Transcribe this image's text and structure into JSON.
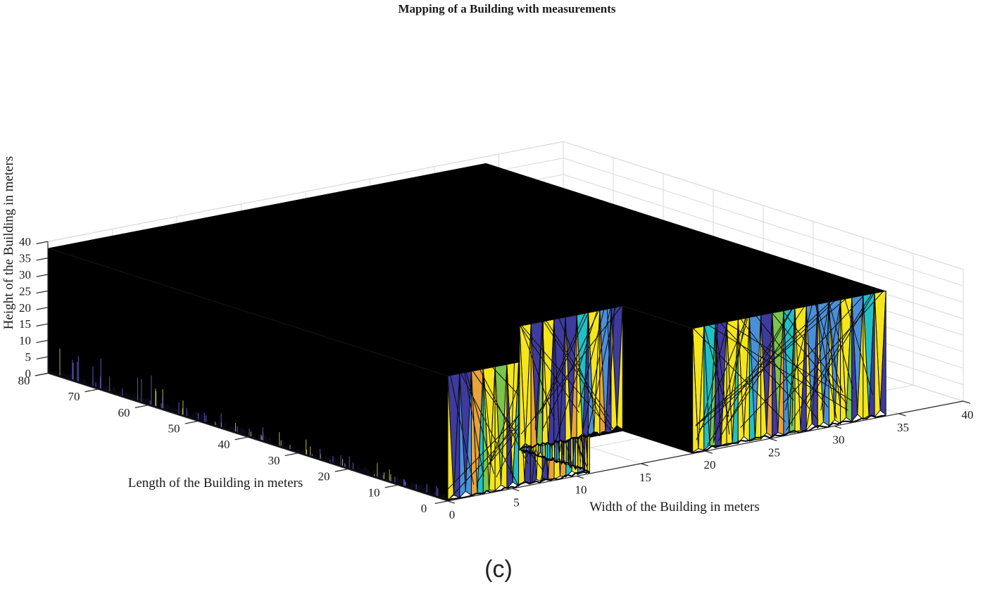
{
  "caption": "(c)",
  "chart_data": {
    "type": "surface3d",
    "title": "Mapping of a Building with measurements",
    "xlabel": "Width of the Building in meters",
    "ylabel": "Length of the Building in meters",
    "zlabel": "Height of the Building in meters",
    "xlim": [
      0,
      40
    ],
    "ylim": [
      0,
      80
    ],
    "zlim": [
      0,
      40
    ],
    "xticks": [
      "0",
      "5",
      "10",
      "15",
      "20",
      "25",
      "30",
      "35",
      "40"
    ],
    "yticks": [
      "0",
      "10",
      "20",
      "30",
      "40",
      "50",
      "60",
      "70",
      "80"
    ],
    "zticks": [
      "0",
      "5",
      "10",
      "15",
      "20",
      "25",
      "30",
      "35",
      "40"
    ],
    "grid": true,
    "colormap": [
      "#3e3a9e",
      "#4b8fd8",
      "#21c0c6",
      "#7cc44a",
      "#e8a33a",
      "#f5e61c"
    ],
    "building_height": 38,
    "footprint": [
      {
        "x": 0,
        "y": 0
      },
      {
        "x": 11,
        "y": 0
      },
      {
        "x": 11,
        "y": 14
      },
      {
        "x": 19,
        "y": 14
      },
      {
        "x": 19,
        "y": 0
      },
      {
        "x": 34,
        "y": 0
      },
      {
        "x": 34,
        "y": 80
      },
      {
        "x": 0,
        "y": 80
      }
    ],
    "visible_wall_surfaces": [
      {
        "name": "front-wall-left",
        "from": {
          "x": 0,
          "y": 0
        },
        "to": {
          "x": 11,
          "y": 0
        },
        "top": 38
      },
      {
        "name": "notch-wall-right",
        "from": {
          "x": 11,
          "y": 14
        },
        "to": {
          "x": 11,
          "y": 0
        },
        "top": 38
      },
      {
        "name": "notch-wall-back",
        "from": {
          "x": 11,
          "y": 14
        },
        "to": {
          "x": 19,
          "y": 14
        },
        "top": 38
      },
      {
        "name": "front-wall-right",
        "from": {
          "x": 19,
          "y": 0
        },
        "to": {
          "x": 34,
          "y": 0
        },
        "top": 38
      }
    ]
  }
}
